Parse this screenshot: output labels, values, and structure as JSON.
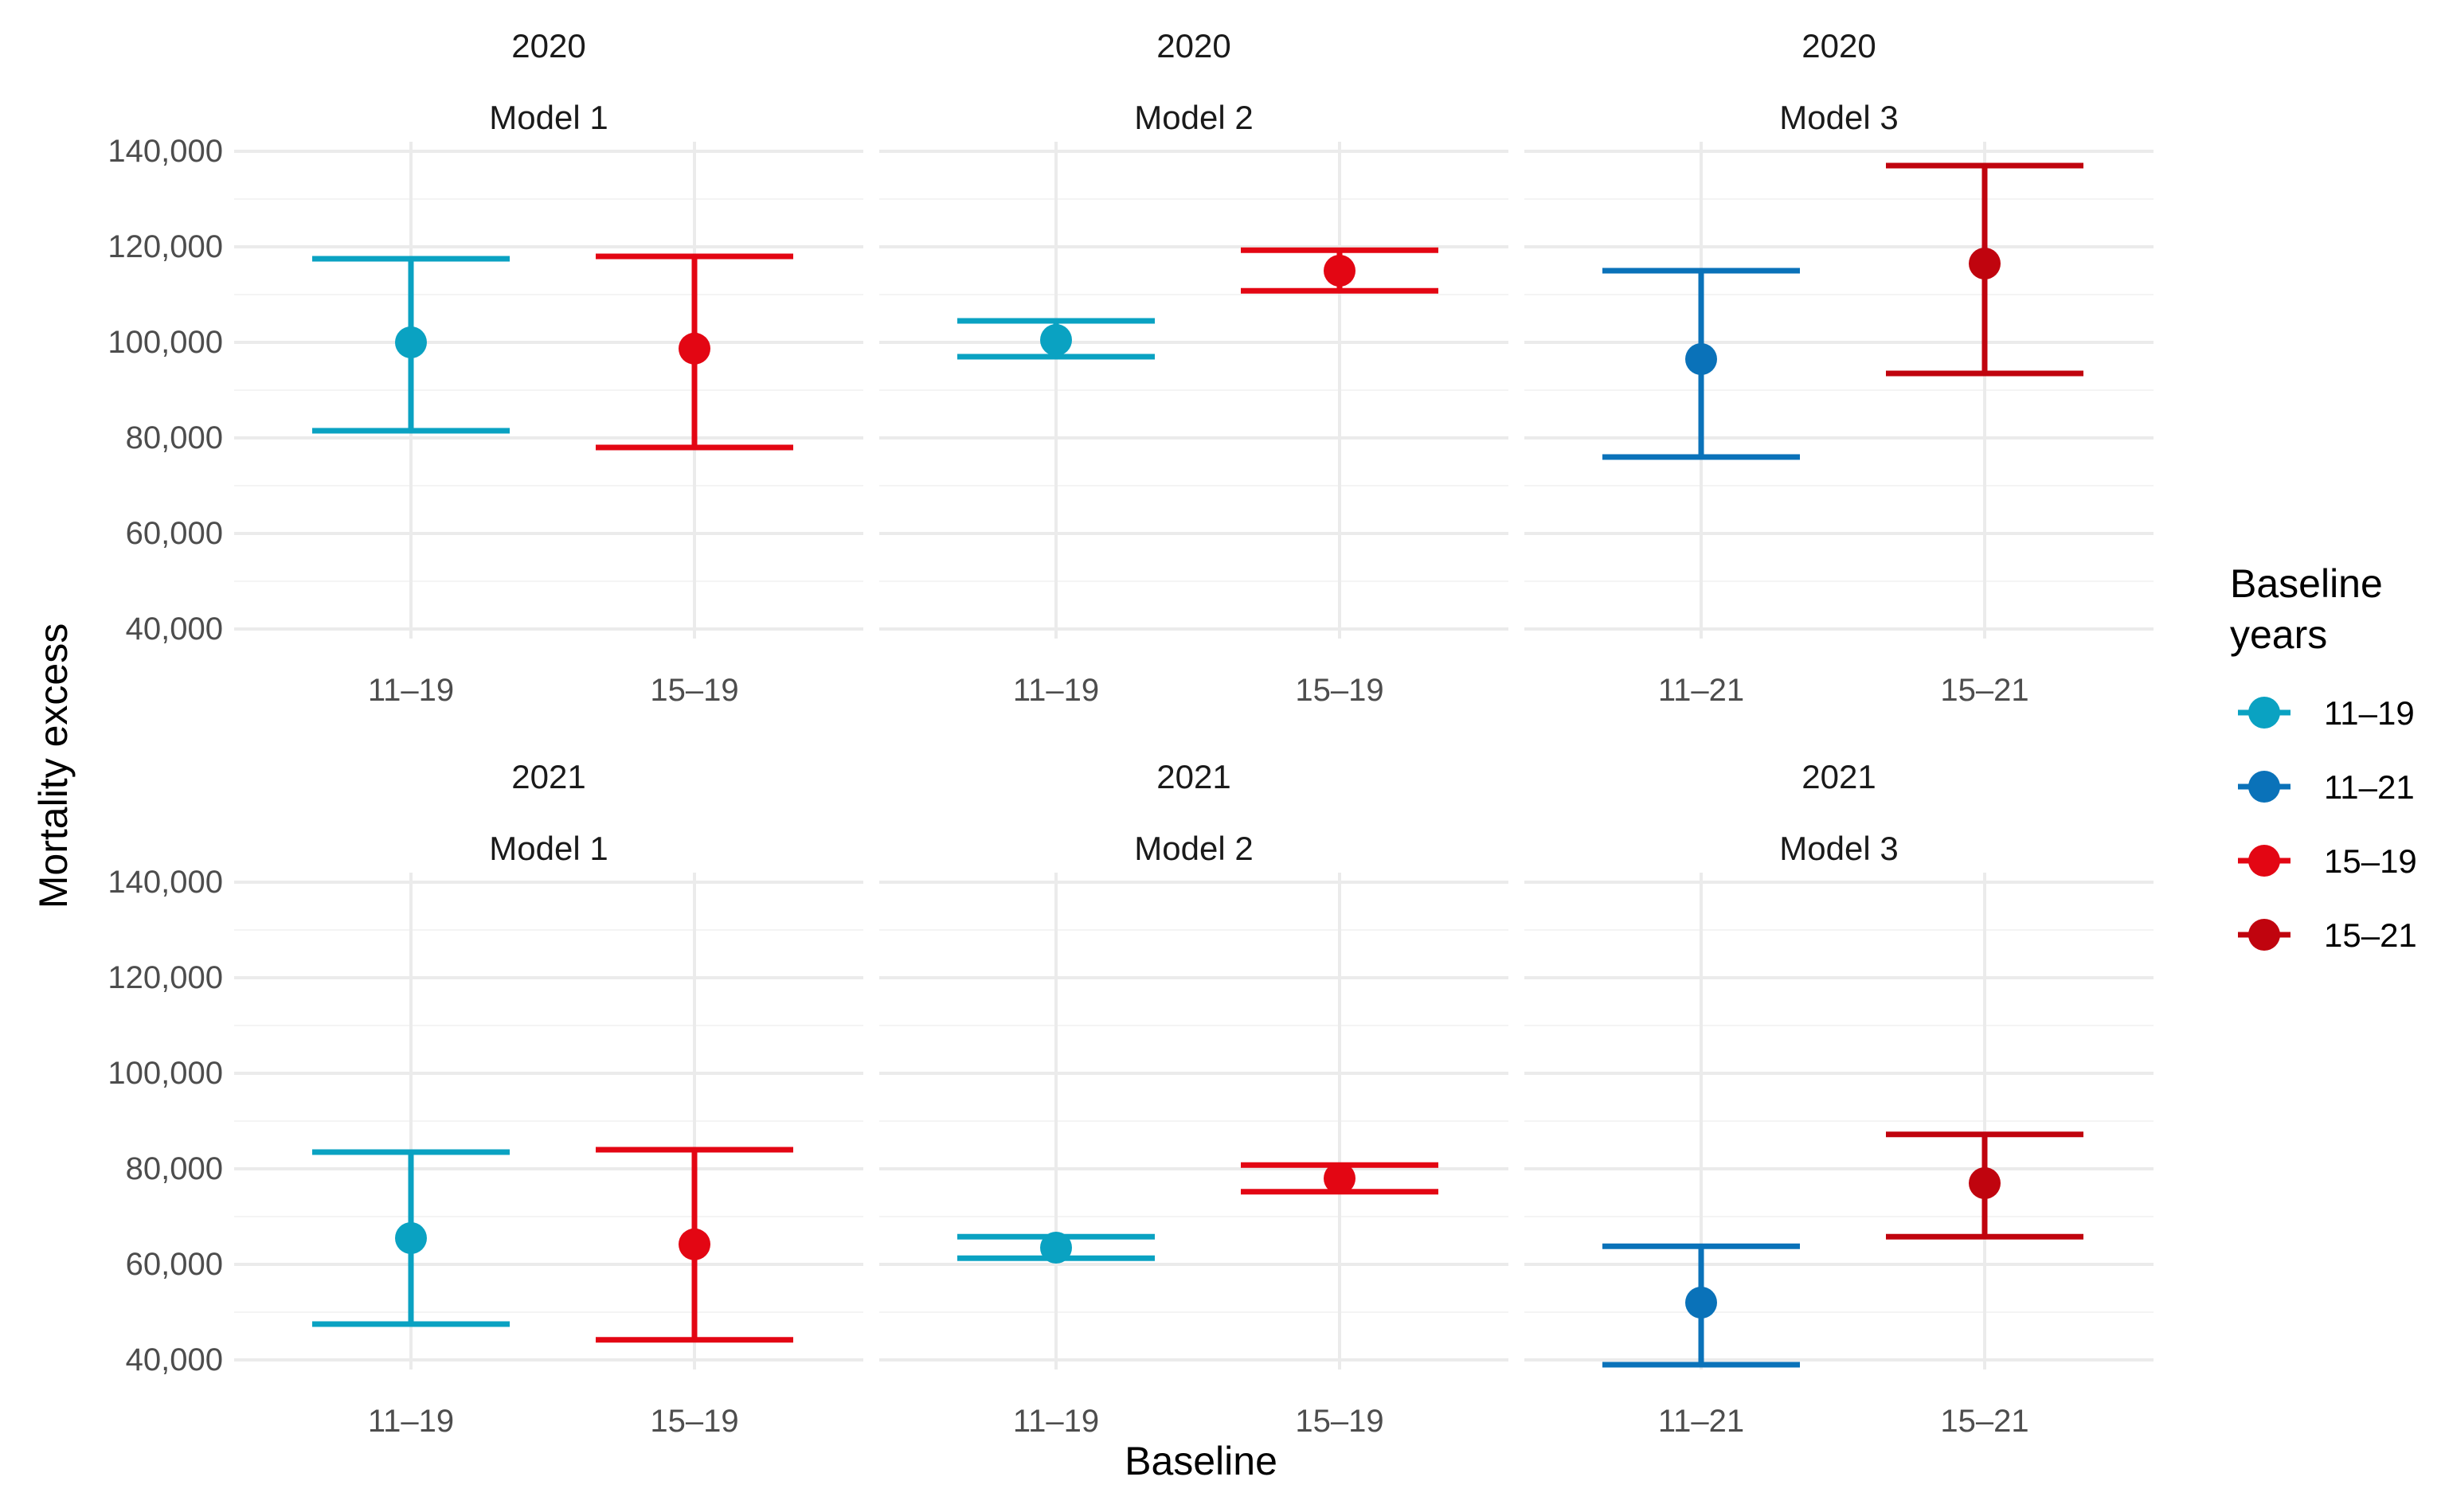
{
  "chart_data": {
    "type": "errorbar",
    "xlabel": "Baseline",
    "ylabel": "Mortality excess",
    "ylim": [
      40000,
      140000
    ],
    "y_ticks": [
      40000,
      60000,
      80000,
      100000,
      120000,
      140000
    ],
    "y_tick_labels": [
      "40,000",
      "60,000",
      "80,000",
      "100,000",
      "120,000",
      "140,000"
    ],
    "legend": {
      "title_lines": [
        "Baseline",
        "years"
      ],
      "position": "right",
      "items": [
        {
          "label": "11–19",
          "color": "#0aa2c2"
        },
        {
          "label": "11–21",
          "color": "#0a72b9"
        },
        {
          "label": "15–19",
          "color": "#e30613"
        },
        {
          "label": "15–21",
          "color": "#c0040e"
        }
      ]
    },
    "panels": [
      {
        "year": "2020",
        "model": "Model 1",
        "points": [
          {
            "x": "11–19",
            "series": "11–19",
            "estimate": 100000,
            "lower": 81500,
            "upper": 117500
          },
          {
            "x": "15–19",
            "series": "15–19",
            "estimate": 98700,
            "lower": 78000,
            "upper": 118000
          }
        ]
      },
      {
        "year": "2020",
        "model": "Model 2",
        "points": [
          {
            "x": "11–19",
            "series": "11–19",
            "estimate": 100500,
            "lower": 97000,
            "upper": 104500
          },
          {
            "x": "15–19",
            "series": "15–19",
            "estimate": 115000,
            "lower": 110800,
            "upper": 119300
          }
        ]
      },
      {
        "year": "2020",
        "model": "Model 3",
        "points": [
          {
            "x": "11–21",
            "series": "11–21",
            "estimate": 96500,
            "lower": 76000,
            "upper": 115000
          },
          {
            "x": "15–21",
            "series": "15–21",
            "estimate": 116500,
            "lower": 93500,
            "upper": 137000
          }
        ]
      },
      {
        "year": "2021",
        "model": "Model 1",
        "points": [
          {
            "x": "11–19",
            "series": "11–19",
            "estimate": 65500,
            "lower": 47500,
            "upper": 83500
          },
          {
            "x": "15–19",
            "series": "15–19",
            "estimate": 64200,
            "lower": 44200,
            "upper": 84000
          }
        ]
      },
      {
        "year": "2021",
        "model": "Model 2",
        "points": [
          {
            "x": "11–19",
            "series": "11–19",
            "estimate": 63500,
            "lower": 61300,
            "upper": 65800
          },
          {
            "x": "15–19",
            "series": "15–19",
            "estimate": 78000,
            "lower": 75200,
            "upper": 80800
          }
        ]
      },
      {
        "year": "2021",
        "model": "Model 3",
        "points": [
          {
            "x": "11–21",
            "series": "11–21",
            "estimate": 52000,
            "lower": 39000,
            "upper": 63800
          },
          {
            "x": "15–21",
            "series": "15–21",
            "estimate": 77000,
            "lower": 65800,
            "upper": 87200
          }
        ]
      }
    ]
  }
}
